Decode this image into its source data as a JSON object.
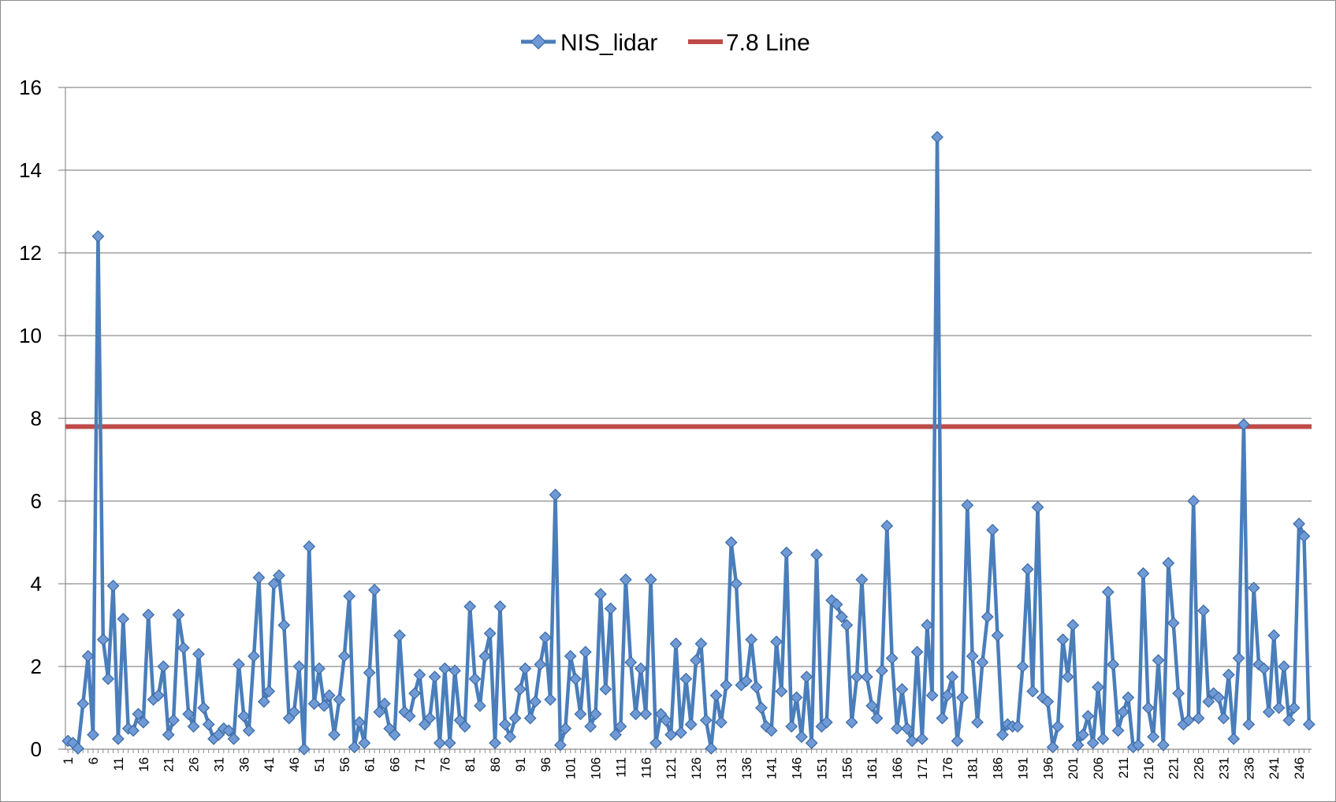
{
  "chart_data": {
    "type": "line",
    "title": "",
    "xlabel": "",
    "ylabel": "",
    "ylim": [
      0,
      16
    ],
    "yticks": [
      0,
      2,
      4,
      6,
      8,
      10,
      12,
      14,
      16
    ],
    "grid": true,
    "legend_position": "top",
    "x": {
      "start": 1,
      "end": 250,
      "tick_labels_every": 5
    },
    "series": [
      {
        "name": "NIS_lidar",
        "color": "#4a7ebb",
        "marker": "diamond",
        "values": [
          0.2,
          0.15,
          0.02,
          1.1,
          2.25,
          0.35,
          12.4,
          2.65,
          1.7,
          3.95,
          0.25,
          3.15,
          0.5,
          0.45,
          0.85,
          0.65,
          3.25,
          1.2,
          1.3,
          2.0,
          0.35,
          0.7,
          3.25,
          2.45,
          0.85,
          0.55,
          2.3,
          1.0,
          0.6,
          0.25,
          0.35,
          0.5,
          0.45,
          0.25,
          2.05,
          0.8,
          0.45,
          2.25,
          4.15,
          1.15,
          1.4,
          4.0,
          4.2,
          3.0,
          0.75,
          0.9,
          2.0,
          0.0,
          4.9,
          1.1,
          1.95,
          1.05,
          1.3,
          0.35,
          1.2,
          2.25,
          3.7,
          0.05,
          0.65,
          0.15,
          1.85,
          3.85,
          0.9,
          1.1,
          0.5,
          0.35,
          2.75,
          0.9,
          0.8,
          1.35,
          1.8,
          0.6,
          0.75,
          1.75,
          0.15,
          1.95,
          0.15,
          1.9,
          0.7,
          0.55,
          3.45,
          1.7,
          1.05,
          2.25,
          2.8,
          0.15,
          3.45,
          0.6,
          0.3,
          0.75,
          1.45,
          1.95,
          0.75,
          1.15,
          2.05,
          2.7,
          1.2,
          6.15,
          0.1,
          0.5,
          2.25,
          1.7,
          0.85,
          2.35,
          0.55,
          0.85,
          3.75,
          1.45,
          3.4,
          0.35,
          0.55,
          4.1,
          2.1,
          0.85,
          1.95,
          0.85,
          4.1,
          0.15,
          0.85,
          0.7,
          0.35,
          2.55,
          0.4,
          1.7,
          0.6,
          2.15,
          2.55,
          0.7,
          0.02,
          1.3,
          0.65,
          1.55,
          5.0,
          4.0,
          1.55,
          1.65,
          2.65,
          1.5,
          1.0,
          0.55,
          0.45,
          2.6,
          1.4,
          4.75,
          0.55,
          1.25,
          0.3,
          1.75,
          0.15,
          4.7,
          0.55,
          0.65,
          3.6,
          3.5,
          3.2,
          3.0,
          0.65,
          1.75,
          4.1,
          1.75,
          1.05,
          0.75,
          1.9,
          5.4,
          2.2,
          0.5,
          1.45,
          0.5,
          0.2,
          2.35,
          0.25,
          3.0,
          1.3,
          14.8,
          0.75,
          1.3,
          1.75,
          0.2,
          1.25,
          5.9,
          2.25,
          0.65,
          2.1,
          3.2,
          5.3,
          2.75,
          0.35,
          0.6,
          0.55,
          0.55,
          2.0,
          4.35,
          1.4,
          5.85,
          1.25,
          1.15,
          0.05,
          0.55,
          2.65,
          1.75,
          3.0,
          0.1,
          0.35,
          0.8,
          0.15,
          1.5,
          0.25,
          3.8,
          2.05,
          0.45,
          0.9,
          1.25,
          0.05,
          0.1,
          4.25,
          1.0,
          0.3,
          2.15,
          0.1,
          4.5,
          3.05,
          1.35,
          0.6,
          0.7,
          6.0,
          0.75,
          3.35,
          1.15,
          1.35,
          1.25,
          0.75,
          1.8,
          0.25,
          2.2,
          7.85,
          0.6,
          3.9,
          2.05,
          1.95,
          0.9,
          2.75,
          1.0,
          2.0,
          0.7,
          1.0,
          5.45,
          5.15,
          0.6
        ]
      },
      {
        "name": "7.8 Line",
        "color": "#be4b48",
        "constant": 7.8
      }
    ]
  }
}
